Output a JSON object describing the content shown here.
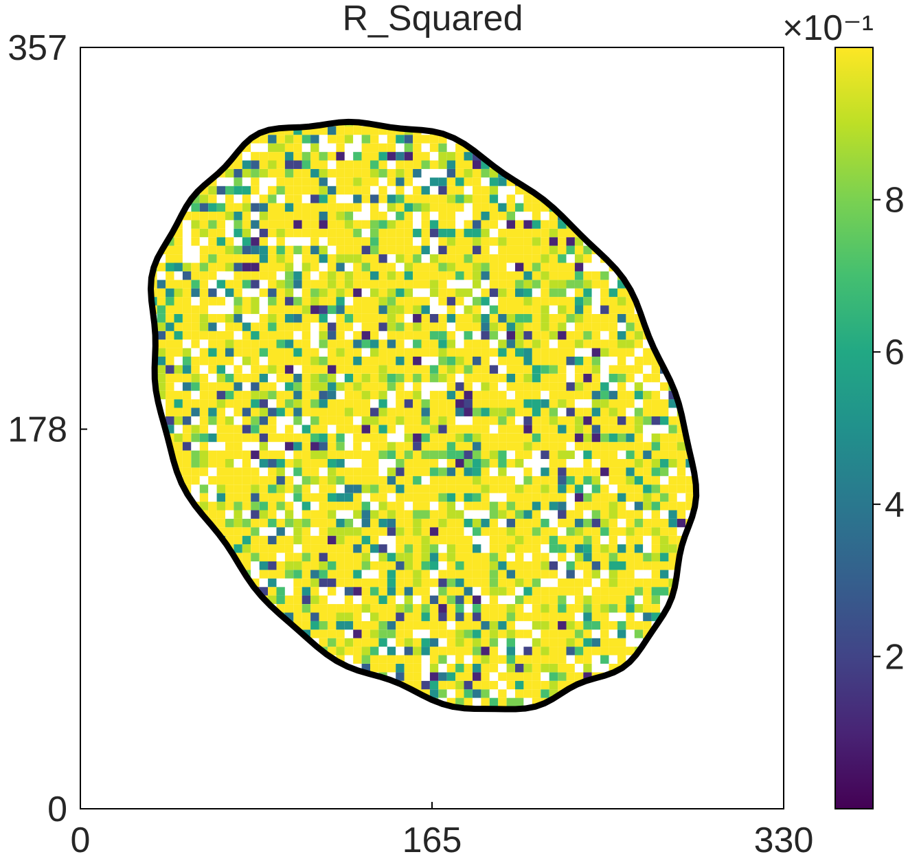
{
  "chart_data": {
    "type": "heatmap",
    "title": "R_Squared",
    "xlabel": "",
    "ylabel": "",
    "xlim": [
      0,
      330
    ],
    "ylim": [
      0,
      357
    ],
    "x_ticks": [
      0,
      165,
      330
    ],
    "y_ticks": [
      0,
      178,
      357
    ],
    "x_tick_labels": [
      "0",
      "165",
      "330"
    ],
    "y_tick_labels": [
      "0",
      "178",
      "357"
    ],
    "colorbar": {
      "colormap": "viridis",
      "range": [
        0.0,
        1.0
      ],
      "scale_multiplier": "×10⁻¹",
      "tick_values": [
        2,
        4,
        6,
        8
      ],
      "tick_labels": [
        "2",
        "4",
        "6",
        "8"
      ]
    },
    "mask_shape": "tilted ellipse",
    "mask_outline_color": "#000000",
    "dominant_value_range": [
      0.8,
      1.0
    ],
    "colors": {
      "low": "#440154",
      "mid": "#21918c",
      "high": "#fde725"
    }
  }
}
